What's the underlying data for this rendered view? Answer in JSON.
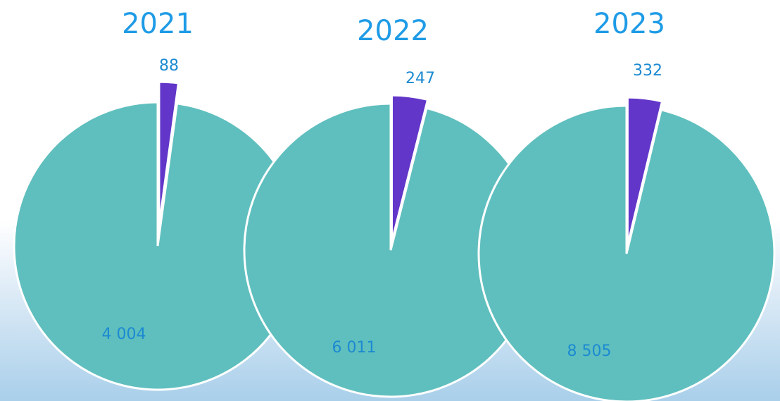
{
  "chart_data": [
    {
      "type": "pie",
      "title": "2021",
      "slices": [
        {
          "label": "4 004",
          "value": 4004,
          "color": "#5fbfbe"
        },
        {
          "label": "88",
          "value": 88,
          "color": "#6236c9"
        }
      ]
    },
    {
      "type": "pie",
      "title": "2022",
      "slices": [
        {
          "label": "6 011",
          "value": 6011,
          "color": "#5fbfbe"
        },
        {
          "label": "247",
          "value": 247,
          "color": "#6236c9"
        }
      ]
    },
    {
      "type": "pie",
      "title": "2023",
      "slices": [
        {
          "label": "8 505",
          "value": 8505,
          "color": "#5fbfbe"
        },
        {
          "label": "332",
          "value": 332,
          "color": "#6236c9"
        }
      ]
    }
  ],
  "colors": {
    "title": "#1e9be6",
    "value_label": "#1c8ad1",
    "slice_edge": "#ffffff"
  }
}
